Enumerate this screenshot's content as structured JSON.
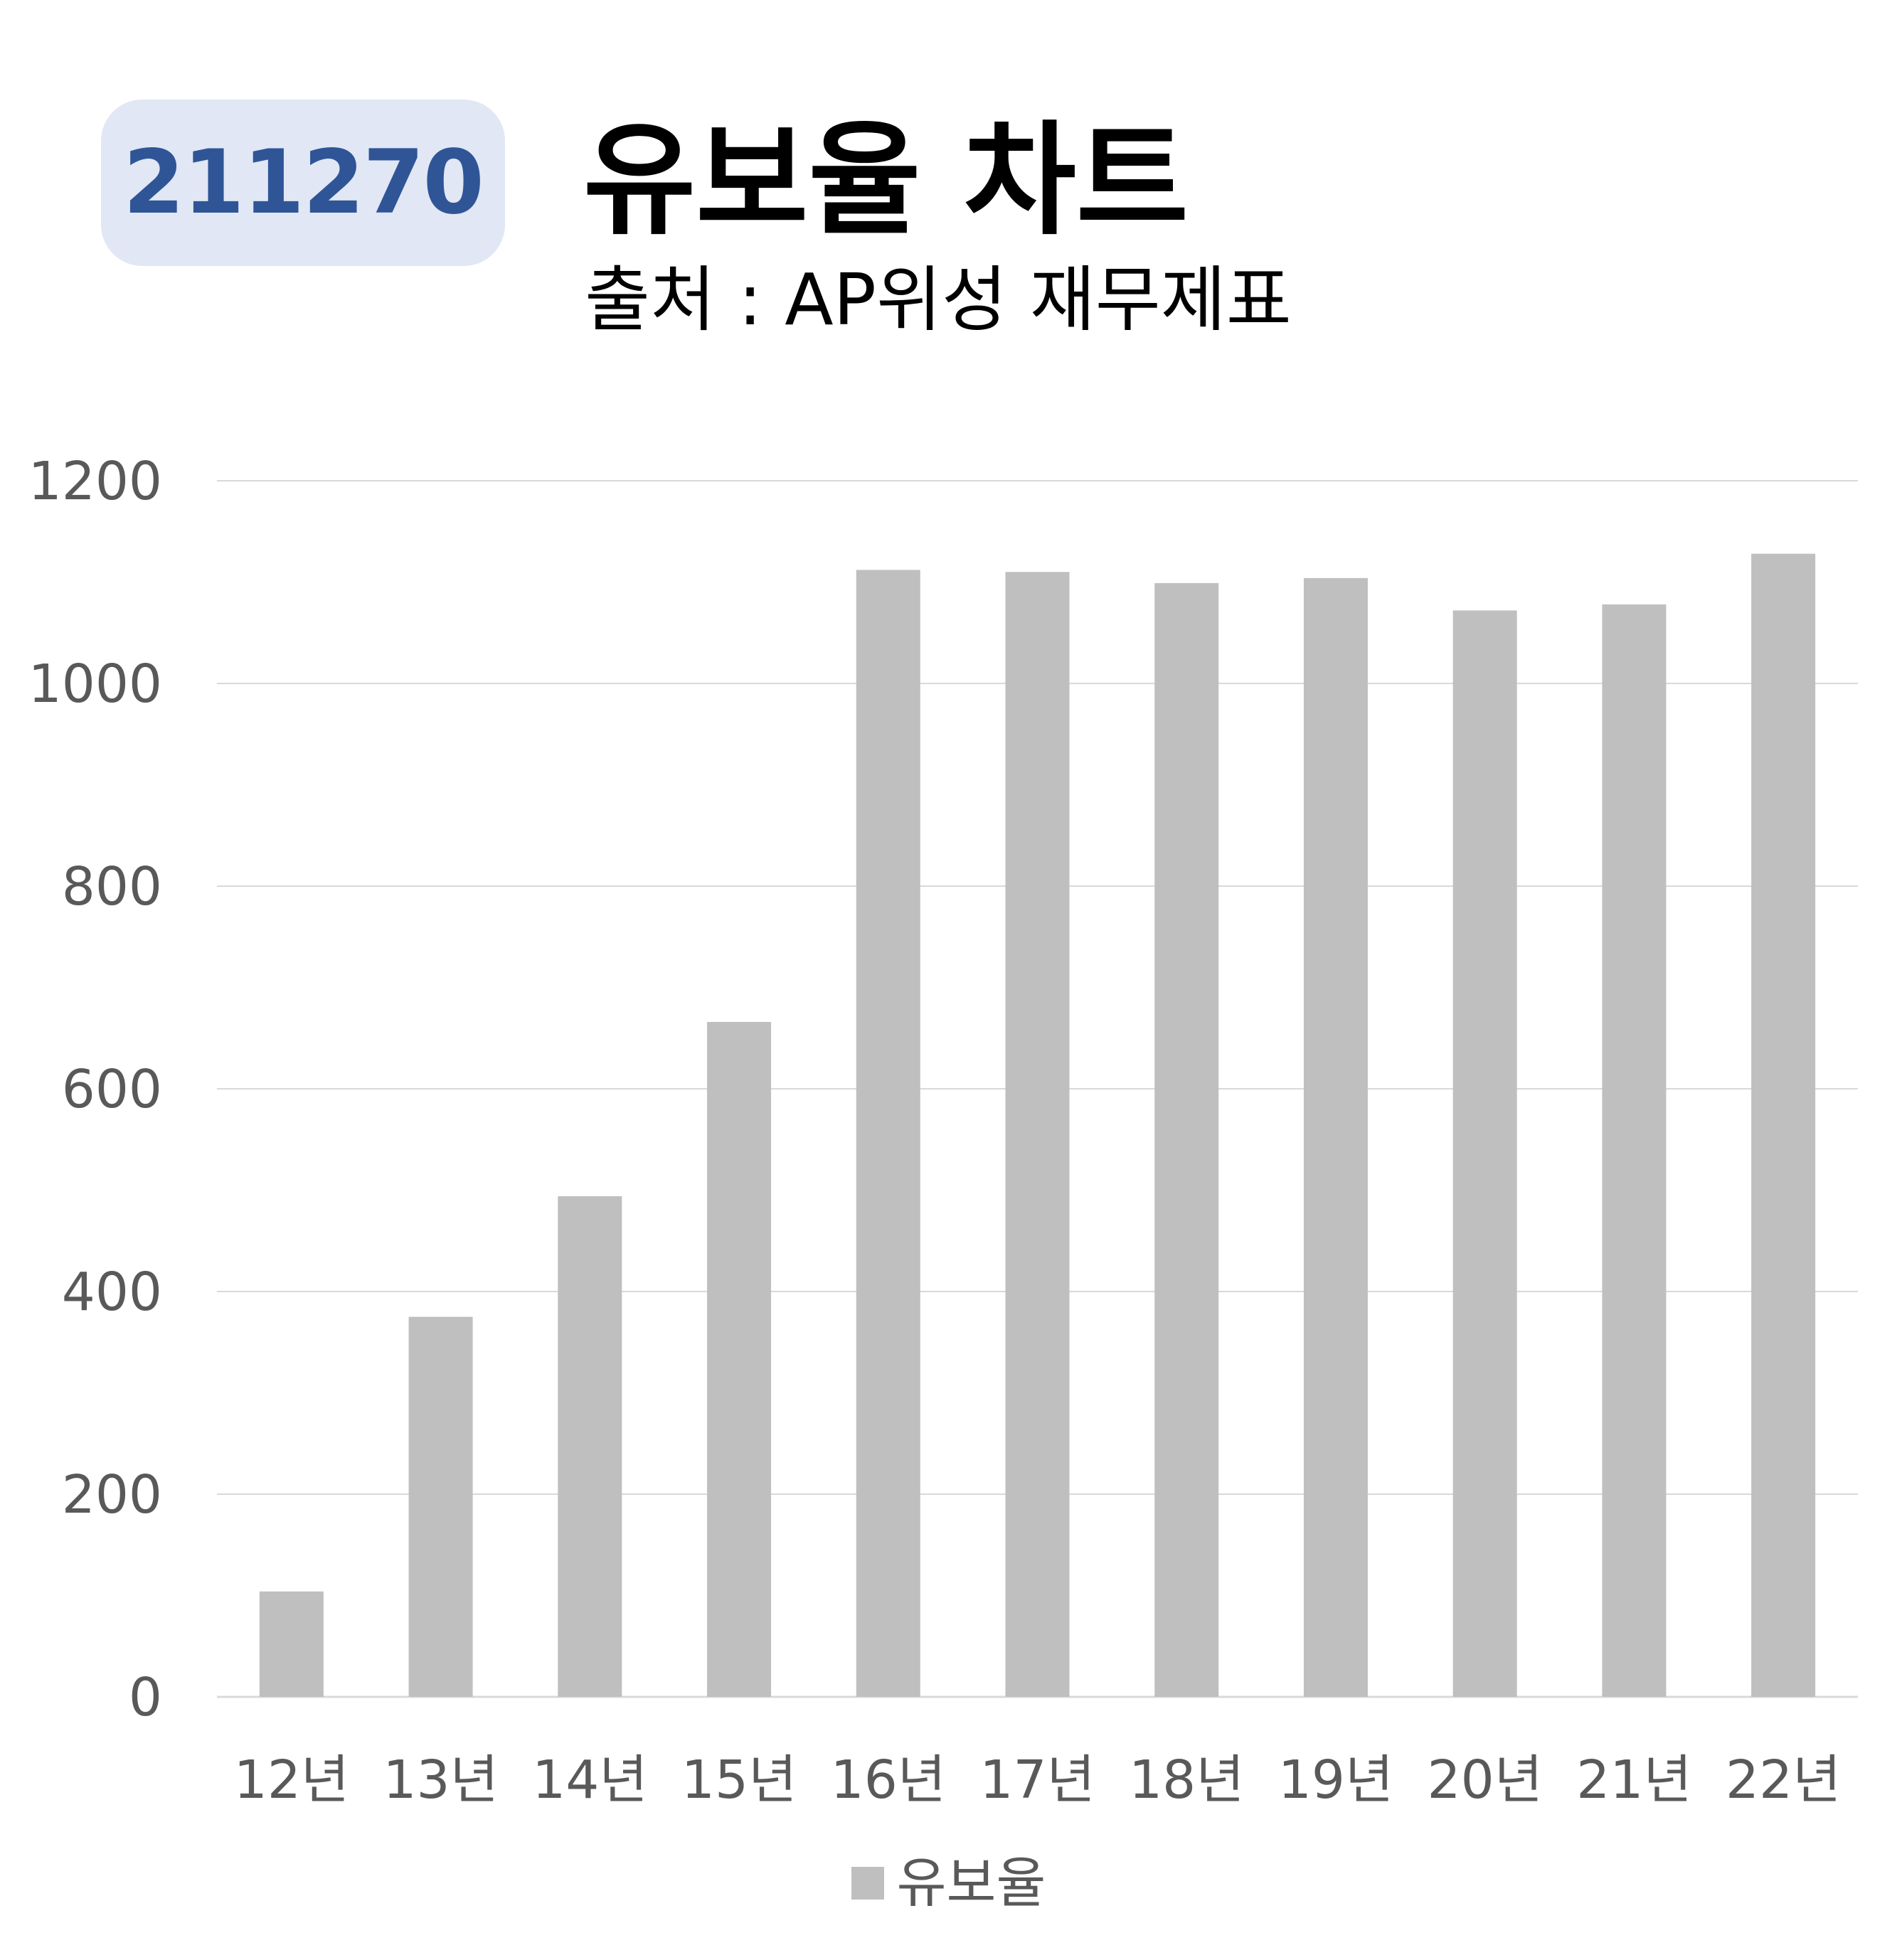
{
  "header": {
    "code": "211270",
    "title": "유보율 차트",
    "subtitle": "출처 : AP위성 재무제표"
  },
  "colors": {
    "bar": "#bfbfbf",
    "badge_bg": "#e1e7f4",
    "badge_text": "#2f5597",
    "grid": "#d9d9d9",
    "tick_text": "#595959"
  },
  "chart_data": {
    "type": "bar",
    "categories": [
      "12년",
      "13년",
      "14년",
      "15년",
      "16년",
      "17년",
      "18년",
      "19년",
      "20년",
      "21년",
      "22년"
    ],
    "series": [
      {
        "name": "유보율",
        "values": [
          104,
          375,
          494,
          666,
          1112,
          1110,
          1099,
          1104,
          1072,
          1078,
          1128
        ]
      }
    ],
    "ylim": [
      0,
      1200
    ],
    "yticks": [
      "0",
      "200",
      "400",
      "600",
      "800",
      "1000",
      "1200"
    ],
    "grid": true,
    "legend_position": "bottom"
  },
  "legend": {
    "label": "유보율"
  }
}
